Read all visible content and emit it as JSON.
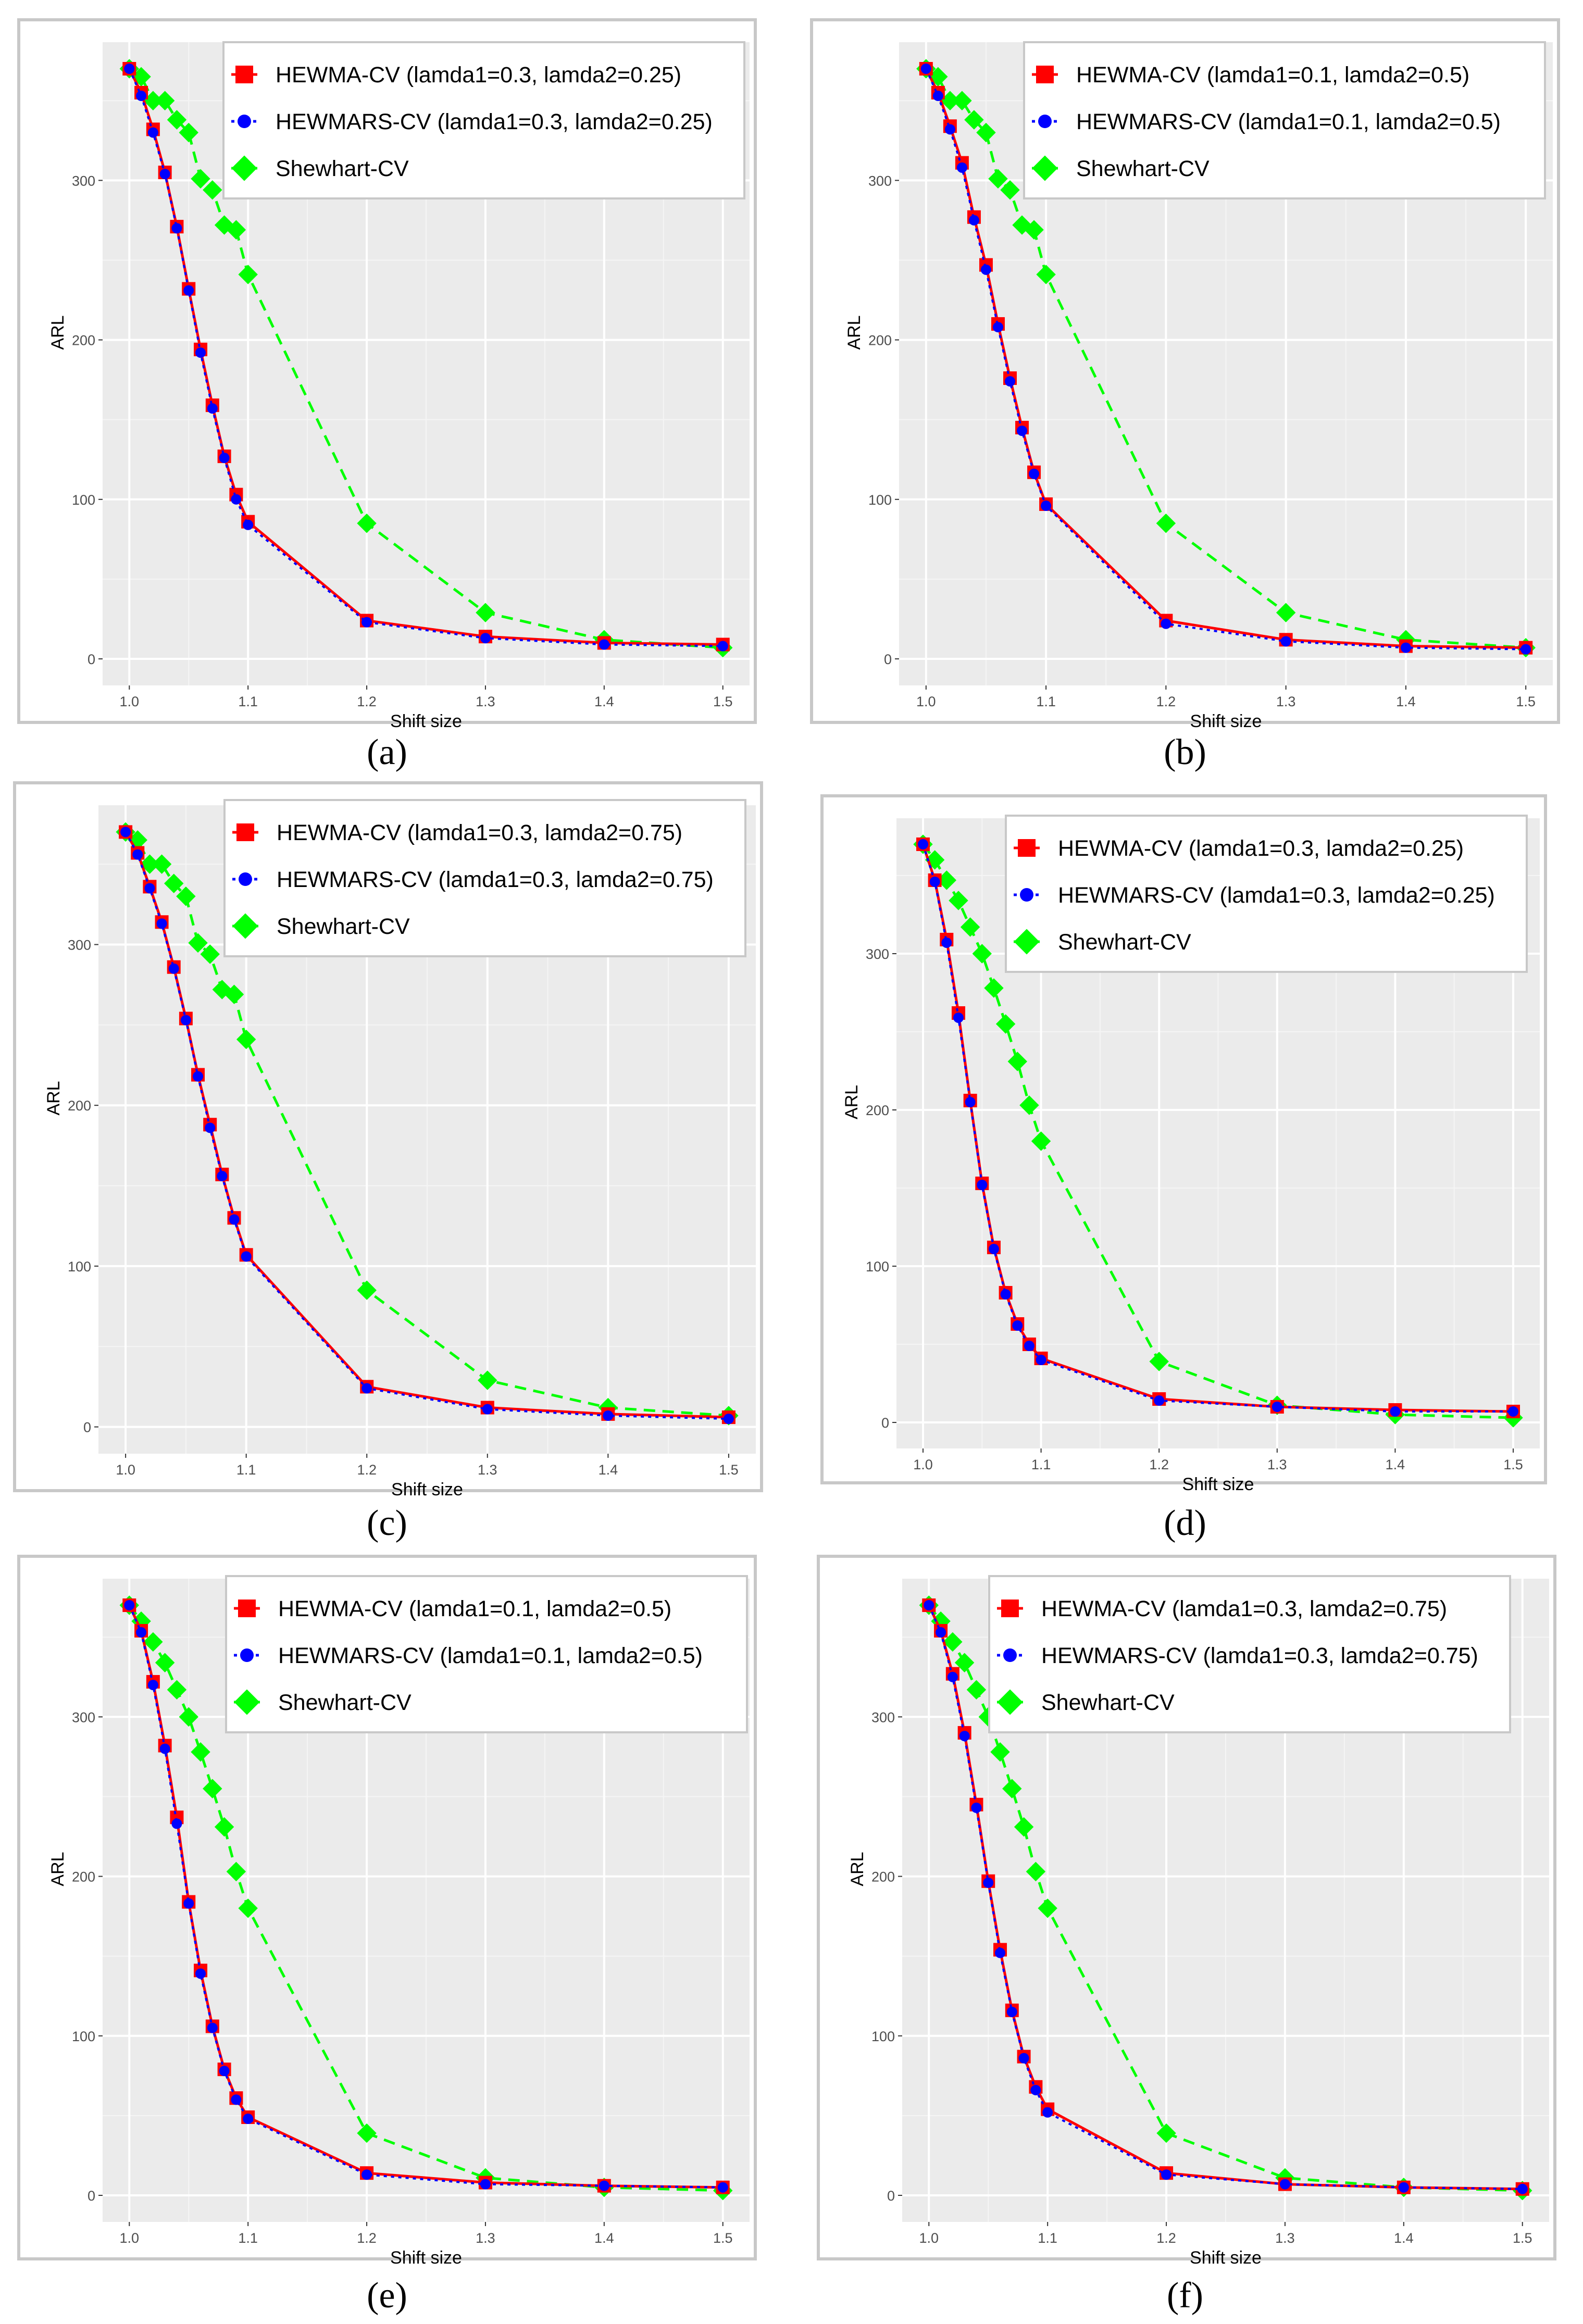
{
  "chart_data": [
    {
      "panel": "a",
      "caption": "(a)",
      "type": "line",
      "xlabel": "Shift size",
      "ylabel": "ARL",
      "xlim": [
        1.0,
        1.5
      ],
      "ylim": [
        0,
        370
      ],
      "xticks": [
        1.0,
        1.1,
        1.2,
        1.3,
        1.4,
        1.5
      ],
      "xtick_labels": [
        "1.0",
        "1.1",
        "1.2",
        "1.3",
        "1.4",
        "1.5"
      ],
      "yticks": [
        0,
        100,
        200,
        300
      ],
      "grid": true,
      "legend_position": "top-right",
      "x": [
        1.0,
        1.01,
        1.02,
        1.03,
        1.04,
        1.05,
        1.06,
        1.07,
        1.08,
        1.09,
        1.1,
        1.2,
        1.3,
        1.4,
        1.5
      ],
      "series": [
        {
          "name": "HEWMA-CV (lamda1=0.3, lamda2=0.25)",
          "color": "#ff0000",
          "marker": "square",
          "line": "solid",
          "values": [
            370,
            355,
            332,
            305,
            271,
            232,
            194,
            159,
            127,
            103,
            86,
            24,
            14,
            10,
            9
          ]
        },
        {
          "name": "HEWMARS-CV (lamda1=0.3, lamda2=0.25)",
          "color": "#0000ff",
          "marker": "circle",
          "line": "dotted",
          "values": [
            370,
            353,
            330,
            304,
            270,
            231,
            192,
            157,
            126,
            100,
            84,
            23,
            13,
            9,
            8
          ]
        },
        {
          "name": "Shewhart-CV",
          "color": "#00ff00",
          "marker": "diamond",
          "line": "dashed",
          "values": [
            370,
            365,
            350,
            350,
            338,
            330,
            301,
            294,
            272,
            269,
            241,
            85,
            29,
            12,
            7
          ]
        }
      ]
    },
    {
      "panel": "b",
      "caption": "(b)",
      "type": "line",
      "xlabel": "Shift size",
      "ylabel": "ARL",
      "xlim": [
        1.0,
        1.5
      ],
      "ylim": [
        0,
        370
      ],
      "xticks": [
        1.0,
        1.1,
        1.2,
        1.3,
        1.4,
        1.5
      ],
      "xtick_labels": [
        "1.0",
        "1.1",
        "1.2",
        "1.3",
        "1.4",
        "1.5"
      ],
      "yticks": [
        0,
        100,
        200,
        300
      ],
      "grid": true,
      "legend_position": "top-right",
      "x": [
        1.0,
        1.01,
        1.02,
        1.03,
        1.04,
        1.05,
        1.06,
        1.07,
        1.08,
        1.09,
        1.1,
        1.2,
        1.3,
        1.4,
        1.5
      ],
      "series": [
        {
          "name": "HEWMA-CV (lamda1=0.1, lamda2=0.5)",
          "color": "#ff0000",
          "marker": "square",
          "line": "solid",
          "values": [
            370,
            355,
            334,
            311,
            277,
            247,
            210,
            176,
            145,
            117,
            97,
            24,
            12,
            8,
            7
          ]
        },
        {
          "name": "HEWMARS-CV (lamda1=0.1, lamda2=0.5)",
          "color": "#0000ff",
          "marker": "circle",
          "line": "dotted",
          "values": [
            370,
            353,
            332,
            308,
            275,
            244,
            208,
            174,
            143,
            116,
            96,
            22,
            11,
            7,
            6
          ]
        },
        {
          "name": "Shewhart-CV",
          "color": "#00ff00",
          "marker": "diamond",
          "line": "dashed",
          "values": [
            370,
            365,
            350,
            350,
            338,
            330,
            301,
            294,
            272,
            269,
            241,
            85,
            29,
            12,
            7
          ]
        }
      ]
    },
    {
      "panel": "c",
      "caption": "(c)",
      "type": "line",
      "xlabel": "Shift size",
      "ylabel": "ARL",
      "xlim": [
        1.0,
        1.5
      ],
      "ylim": [
        0,
        370
      ],
      "xticks": [
        1.0,
        1.1,
        1.2,
        1.3,
        1.4,
        1.5
      ],
      "xtick_labels": [
        "1.0",
        "1.1",
        "1.2",
        "1.3",
        "1.4",
        "1.5"
      ],
      "yticks": [
        0,
        100,
        200,
        300
      ],
      "grid": true,
      "legend_position": "top-right",
      "x": [
        1.0,
        1.01,
        1.02,
        1.03,
        1.04,
        1.05,
        1.06,
        1.07,
        1.08,
        1.09,
        1.1,
        1.2,
        1.3,
        1.4,
        1.5
      ],
      "series": [
        {
          "name": "HEWMA-CV (lamda1=0.3, lamda2=0.75)",
          "color": "#ff0000",
          "marker": "square",
          "line": "solid",
          "values": [
            370,
            357,
            336,
            314,
            286,
            254,
            219,
            188,
            157,
            130,
            107,
            25,
            12,
            8,
            6
          ]
        },
        {
          "name": "HEWMARS-CV (lamda1=0.3, lamda2=0.75)",
          "color": "#0000ff",
          "marker": "circle",
          "line": "dotted",
          "values": [
            370,
            356,
            335,
            313,
            285,
            253,
            218,
            186,
            156,
            129,
            106,
            24,
            11,
            7,
            5
          ]
        },
        {
          "name": "Shewhart-CV",
          "color": "#00ff00",
          "marker": "diamond",
          "line": "dashed",
          "values": [
            370,
            365,
            350,
            350,
            338,
            330,
            301,
            294,
            272,
            269,
            241,
            85,
            29,
            12,
            7
          ]
        }
      ]
    },
    {
      "panel": "d",
      "caption": "(d)",
      "type": "line",
      "xlabel": "Shift size",
      "ylabel": "ARL",
      "xlim": [
        1.0,
        1.5
      ],
      "ylim": [
        0,
        370
      ],
      "xticks": [
        1.0,
        1.1,
        1.2,
        1.3,
        1.4,
        1.5
      ],
      "xtick_labels": [
        "1.0",
        "1.1",
        "1.2",
        "1.3",
        "1.4",
        "1.5"
      ],
      "yticks": [
        0,
        100,
        200,
        300
      ],
      "grid": true,
      "legend_position": "top-right",
      "x": [
        1.0,
        1.01,
        1.02,
        1.03,
        1.04,
        1.05,
        1.06,
        1.07,
        1.08,
        1.09,
        1.1,
        1.2,
        1.3,
        1.4,
        1.5
      ],
      "series": [
        {
          "name": "HEWMA-CV (lamda1=0.3, lamda2=0.25)",
          "color": "#ff0000",
          "marker": "square",
          "line": "solid",
          "values": [
            370,
            347,
            309,
            262,
            206,
            153,
            112,
            83,
            63,
            50,
            41,
            15,
            10,
            8,
            7
          ]
        },
        {
          "name": "HEWMARS-CV (lamda1=0.3, lamda2=0.25)",
          "color": "#0000ff",
          "marker": "circle",
          "line": "dotted",
          "values": [
            370,
            346,
            307,
            259,
            205,
            152,
            111,
            82,
            62,
            49,
            40,
            14,
            10,
            7,
            7
          ]
        },
        {
          "name": "Shewhart-CV",
          "color": "#00ff00",
          "marker": "diamond",
          "line": "dashed",
          "values": [
            370,
            360,
            347,
            334,
            317,
            300,
            278,
            255,
            231,
            203,
            180,
            39,
            11,
            5,
            3
          ]
        }
      ]
    },
    {
      "panel": "e",
      "caption": "(e)",
      "type": "line",
      "xlabel": "Shift size",
      "ylabel": "ARL",
      "xlim": [
        1.0,
        1.5
      ],
      "ylim": [
        0,
        370
      ],
      "xticks": [
        1.0,
        1.1,
        1.2,
        1.3,
        1.4,
        1.5
      ],
      "xtick_labels": [
        "1.0",
        "1.1",
        "1.2",
        "1.3",
        "1.4",
        "1.5"
      ],
      "yticks": [
        0,
        100,
        200,
        300
      ],
      "grid": true,
      "legend_position": "top-right",
      "x": [
        1.0,
        1.01,
        1.02,
        1.03,
        1.04,
        1.05,
        1.06,
        1.07,
        1.08,
        1.09,
        1.1,
        1.2,
        1.3,
        1.4,
        1.5
      ],
      "series": [
        {
          "name": "HEWMA-CV (lamda1=0.1, lamda2=0.5)",
          "color": "#ff0000",
          "marker": "square",
          "line": "solid",
          "values": [
            370,
            354,
            322,
            282,
            237,
            184,
            141,
            106,
            79,
            61,
            49,
            14,
            8,
            6,
            5
          ]
        },
        {
          "name": "HEWMARS-CV (lamda1=0.1, lamda2=0.5)",
          "color": "#0000ff",
          "marker": "circle",
          "line": "dotted",
          "values": [
            370,
            353,
            320,
            280,
            233,
            183,
            139,
            105,
            78,
            60,
            48,
            13,
            7,
            6,
            5
          ]
        },
        {
          "name": "Shewhart-CV",
          "color": "#00ff00",
          "marker": "diamond",
          "line": "dashed",
          "values": [
            370,
            360,
            347,
            334,
            317,
            300,
            278,
            255,
            231,
            203,
            180,
            39,
            11,
            5,
            3
          ]
        }
      ]
    },
    {
      "panel": "f",
      "caption": "(f)",
      "type": "line",
      "xlabel": "Shift size",
      "ylabel": "ARL",
      "xlim": [
        1.0,
        1.5
      ],
      "ylim": [
        0,
        370
      ],
      "xticks": [
        1.0,
        1.1,
        1.2,
        1.3,
        1.4,
        1.5
      ],
      "xtick_labels": [
        "1.0",
        "1.1",
        "1.2",
        "1.3",
        "1.4",
        "1.5"
      ],
      "yticks": [
        0,
        100,
        200,
        300
      ],
      "grid": true,
      "legend_position": "top-right",
      "x": [
        1.0,
        1.01,
        1.02,
        1.03,
        1.04,
        1.05,
        1.06,
        1.07,
        1.08,
        1.09,
        1.1,
        1.2,
        1.3,
        1.4,
        1.5
      ],
      "series": [
        {
          "name": "HEWMA-CV (lamda1=0.3, lamda2=0.75)",
          "color": "#ff0000",
          "marker": "square",
          "line": "solid",
          "values": [
            370,
            354,
            327,
            290,
            245,
            197,
            154,
            116,
            87,
            68,
            54,
            14,
            7,
            5,
            4
          ]
        },
        {
          "name": "HEWMARS-CV (lamda1=0.3, lamda2=0.75)",
          "color": "#0000ff",
          "marker": "circle",
          "line": "dotted",
          "values": [
            370,
            353,
            325,
            288,
            243,
            196,
            152,
            115,
            86,
            66,
            52,
            13,
            7,
            5,
            4
          ]
        },
        {
          "name": "Shewhart-CV",
          "color": "#00ff00",
          "marker": "diamond",
          "line": "dashed",
          "values": [
            370,
            360,
            347,
            334,
            317,
            300,
            278,
            255,
            231,
            203,
            180,
            39,
            11,
            5,
            3
          ]
        }
      ]
    }
  ]
}
